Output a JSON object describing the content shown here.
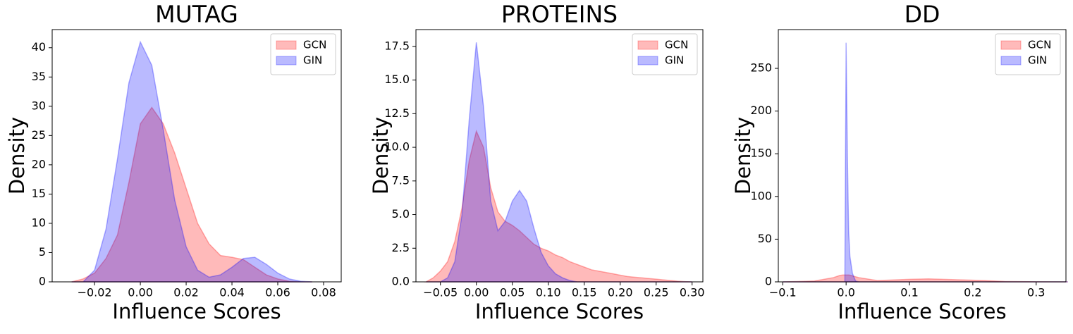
{
  "chart_data": [
    {
      "type": "area",
      "title": "MUTAG",
      "x_label": "Influence Scores",
      "y_label": "Density",
      "legend": "upper right",
      "x": [
        -0.03,
        -0.025,
        -0.02,
        -0.015,
        -0.01,
        -0.005,
        0,
        0.005,
        0.01,
        0.015,
        0.02,
        0.025,
        0.03,
        0.035,
        0.04,
        0.045,
        0.05,
        0.055,
        0.06,
        0.065,
        0.07,
        0.075
      ],
      "series": [
        {
          "name": "GCN",
          "color": "#ff0000",
          "values": [
            0,
            0.5,
            1.5,
            4,
            8,
            17,
            27,
            29.8,
            27,
            22,
            16,
            10,
            6.5,
            4.5,
            4.2,
            3.8,
            2.5,
            1.2,
            0.5,
            0.1,
            0,
            0
          ]
        },
        {
          "name": "GIN",
          "color": "#0000ff",
          "values": [
            0,
            0,
            2,
            9,
            21,
            34,
            41,
            37,
            26,
            14,
            6,
            2,
            0.8,
            1.2,
            2.5,
            4,
            4.2,
            3,
            1.5,
            0.5,
            0.1,
            0
          ]
        }
      ],
      "xlim": [
        -0.0385,
        0.0877
      ],
      "xticks": [
        {
          "value": -0.02,
          "label": "−0.02"
        },
        {
          "value": 0,
          "label": "0.00"
        },
        {
          "value": 0.02,
          "label": "0.02"
        },
        {
          "value": 0.04,
          "label": "0.04"
        },
        {
          "value": 0.06,
          "label": "0.06"
        },
        {
          "value": 0.08,
          "label": "0.08"
        }
      ],
      "ylim": [
        0,
        43.1
      ],
      "yticks": [
        0,
        5,
        10,
        15,
        20,
        25,
        30,
        35,
        40
      ]
    },
    {
      "type": "area",
      "title": "PROTEINS",
      "x_label": "Influence Scores",
      "y_label": "Density",
      "legend": "upper right",
      "x": [
        -0.07,
        -0.06,
        -0.05,
        -0.04,
        -0.03,
        -0.02,
        -0.01,
        0,
        0.01,
        0.02,
        0.03,
        0.04,
        0.05,
        0.06,
        0.07,
        0.08,
        0.09,
        0.1,
        0.11,
        0.12,
        0.13,
        0.14,
        0.15,
        0.16,
        0.17,
        0.18,
        0.19,
        0.2,
        0.21,
        0.22,
        0.23,
        0.24,
        0.25,
        0.26,
        0.27,
        0.28,
        0.29,
        0.3
      ],
      "series": [
        {
          "name": "GCN",
          "color": "#ff0000",
          "values": [
            0,
            0.3,
            0.8,
            1.5,
            3,
            5.5,
            9,
            11.2,
            10,
            7,
            5.2,
            4.5,
            4.2,
            3.8,
            3.3,
            2.8,
            2.5,
            2.3,
            2,
            1.8,
            1.5,
            1.3,
            1.1,
            0.9,
            0.8,
            0.7,
            0.6,
            0.5,
            0.4,
            0.35,
            0.3,
            0.25,
            0.2,
            0.15,
            0.1,
            0.05,
            0.02,
            0
          ]
        },
        {
          "name": "GIN",
          "color": "#0000ff",
          "values": [
            0,
            0,
            0,
            0.3,
            1.5,
            5,
            12,
            17.8,
            13,
            6,
            3.8,
            4.5,
            6,
            6.8,
            6,
            4,
            2.2,
            1.2,
            0.6,
            0.3,
            0.1,
            0,
            0,
            0,
            0,
            0,
            0,
            0,
            0,
            0,
            0,
            0,
            0,
            0,
            0,
            0,
            0,
            0
          ]
        }
      ],
      "xlim": [
        -0.084,
        0.315
      ],
      "xticks": [
        {
          "value": -0.05,
          "label": "−0.05"
        },
        {
          "value": 0,
          "label": "0.00"
        },
        0.05,
        {
          "value": 0.1,
          "label": "0.10"
        },
        0.15,
        {
          "value": 0.2,
          "label": "0.20"
        },
        0.25,
        {
          "value": 0.3,
          "label": "0.30"
        }
      ],
      "ylim": [
        0,
        18.75
      ],
      "yticks": [
        {
          "value": 0,
          "label": "0.0"
        },
        2.5,
        {
          "value": 5,
          "label": "5.0"
        },
        7.5,
        {
          "value": 10,
          "label": "10.0"
        },
        12.5,
        {
          "value": 15,
          "label": "15.0"
        },
        17.5
      ]
    },
    {
      "type": "area",
      "title": "DD",
      "x_label": "Influence Scores",
      "y_label": "Density",
      "legend": "upper right",
      "x": [
        -0.1,
        -0.05,
        -0.02,
        -0.01,
        -0.005,
        -0.002,
        0,
        0.002,
        0.004,
        0.006,
        0.008,
        0.01,
        0.015,
        0.02,
        0.05,
        0.1,
        0.13,
        0.2,
        0.25,
        0.3,
        0.35
      ],
      "series": [
        {
          "name": "GCN",
          "color": "#ff0000",
          "values": [
            0,
            1,
            5,
            7.5,
            8,
            8,
            8,
            8,
            8,
            7.8,
            7.5,
            7,
            6,
            5,
            1.5,
            3,
            3.5,
            2,
            0.5,
            0.1,
            0
          ]
        },
        {
          "name": "GIN",
          "color": "#0000ff",
          "values": [
            0,
            0,
            0,
            0,
            0,
            0,
            280,
            150,
            60,
            30,
            20,
            10,
            1,
            0,
            0,
            0,
            0,
            0,
            0,
            0,
            0
          ]
        }
      ],
      "xlim": [
        -0.107,
        0.347
      ],
      "xticks": [
        {
          "value": -0.1,
          "label": "−0.1"
        },
        {
          "value": 0,
          "label": "0.0"
        },
        0.1,
        0.2,
        0.3
      ],
      "ylim": [
        0,
        295.4
      ],
      "yticks": [
        0,
        50,
        100,
        150,
        200,
        250
      ]
    }
  ]
}
